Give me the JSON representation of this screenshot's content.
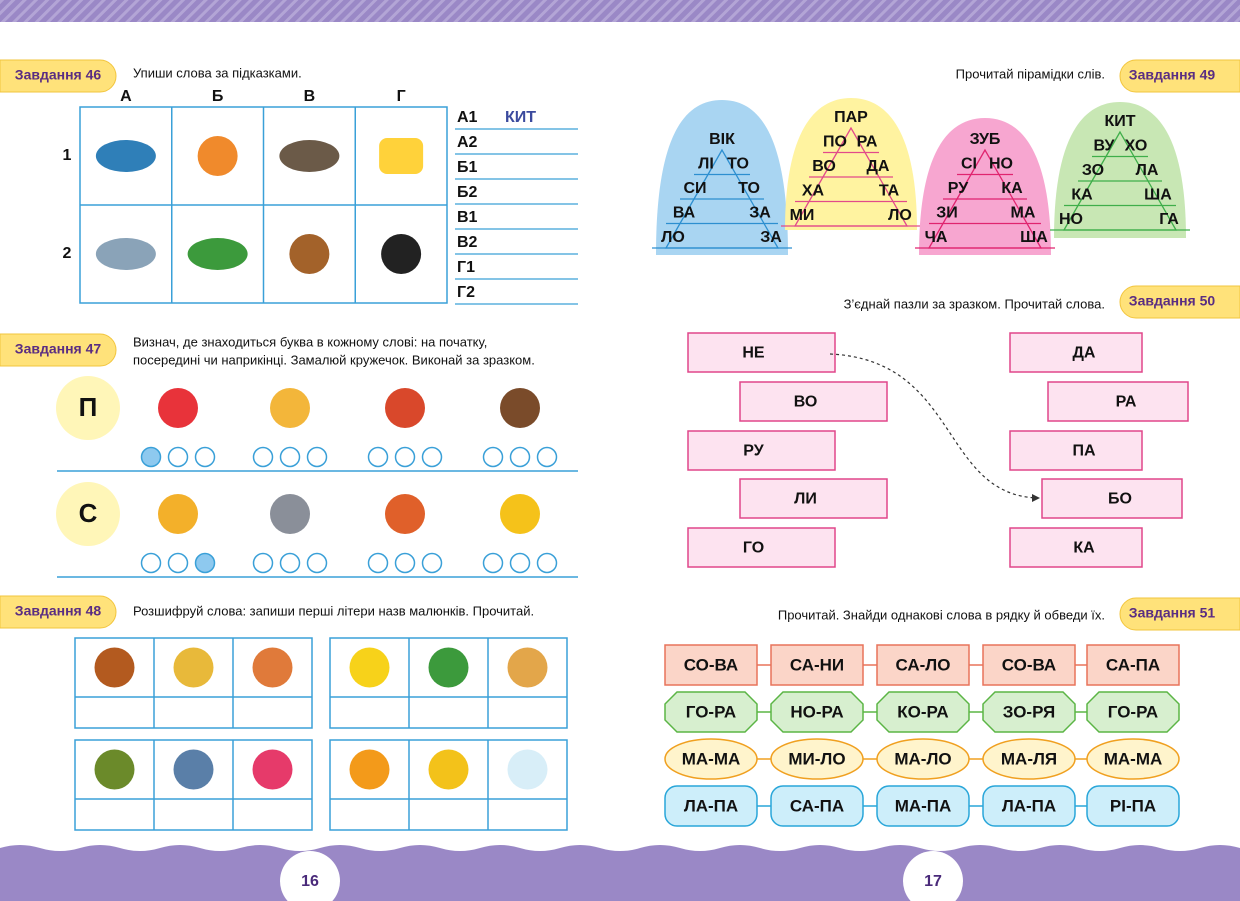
{
  "task46": {
    "badge": "Завдання 46",
    "instruction": "Упиши слова за підказками.",
    "columns": [
      "А",
      "Б",
      "В",
      "Г"
    ],
    "rows": [
      "1",
      "2"
    ],
    "answer_keys": [
      "А1",
      "А2",
      "Б1",
      "Б2",
      "В1",
      "В2",
      "Г1",
      "Г2"
    ],
    "example_answer": "КИТ"
  },
  "task47": {
    "badge": "Завдання 47",
    "instruction_lines": [
      "Визнач, де знаходиться буква в кожному слові: на початку,",
      "посередині чи наприкінці. Замалюй кружечок. Виконай за зразком."
    ],
    "letters": [
      "П",
      "С"
    ]
  },
  "task48": {
    "badge": "Завдання 48",
    "instruction": "Розшифруй слова: запиши перші літери назв малюнків. Прочитай."
  },
  "task49": {
    "badge": "Завдання 49",
    "instruction": "Прочитай пірамідки слів.",
    "pyramids": [
      [
        [
          "ВІК"
        ],
        [
          "ЛІ",
          "ТО"
        ],
        [
          "СИ",
          "ТО"
        ],
        [
          "ВА",
          "ЗА"
        ],
        [
          "ЛО",
          "ЗА"
        ]
      ],
      [
        [
          "ПАР"
        ],
        [
          "ПО",
          "РА"
        ],
        [
          "ВО",
          "ДА"
        ],
        [
          "ХА",
          "ТА"
        ],
        [
          "МИ",
          "ЛО"
        ]
      ],
      [
        [
          "ЗУБ"
        ],
        [
          "СІ",
          "НО"
        ],
        [
          "РУ",
          "КА"
        ],
        [
          "ЗИ",
          "МА"
        ],
        [
          "ЧА",
          "ША"
        ]
      ],
      [
        [
          "КИТ"
        ],
        [
          "ВУ",
          "ХО"
        ],
        [
          "ЗО",
          "ЛА"
        ],
        [
          "КА",
          "ША"
        ],
        [
          "НО",
          "ГА"
        ]
      ]
    ]
  },
  "task50": {
    "badge": "Завдання 50",
    "instruction": "З’єднай пазли за зразком. Прочитай слова.",
    "left": [
      "НЕ",
      "ВО",
      "РУ",
      "ЛИ",
      "ГО"
    ],
    "right": [
      "ДА",
      "РА",
      "ПА",
      "БО",
      "КА"
    ]
  },
  "task51": {
    "badge": "Завдання 51",
    "instruction": "Прочитай. Знайди однакові слова в рядку й обведи їх.",
    "rows": [
      [
        "СО-ВА",
        "СА-НИ",
        "СА-ЛО",
        "СО-ВА",
        "СА-ПА"
      ],
      [
        "ГО-РА",
        "НО-РА",
        "КО-РА",
        "ЗО-РЯ",
        "ГО-РА"
      ],
      [
        "МА-МА",
        "МИ-ЛО",
        "МА-ЛО",
        "МА-ЛЯ",
        "МА-МА"
      ],
      [
        "ЛА-ПА",
        "СА-ПА",
        "МА-ПА",
        "ЛА-ПА",
        "РІ-ПА"
      ]
    ]
  },
  "page_numbers": [
    "16",
    "17"
  ]
}
